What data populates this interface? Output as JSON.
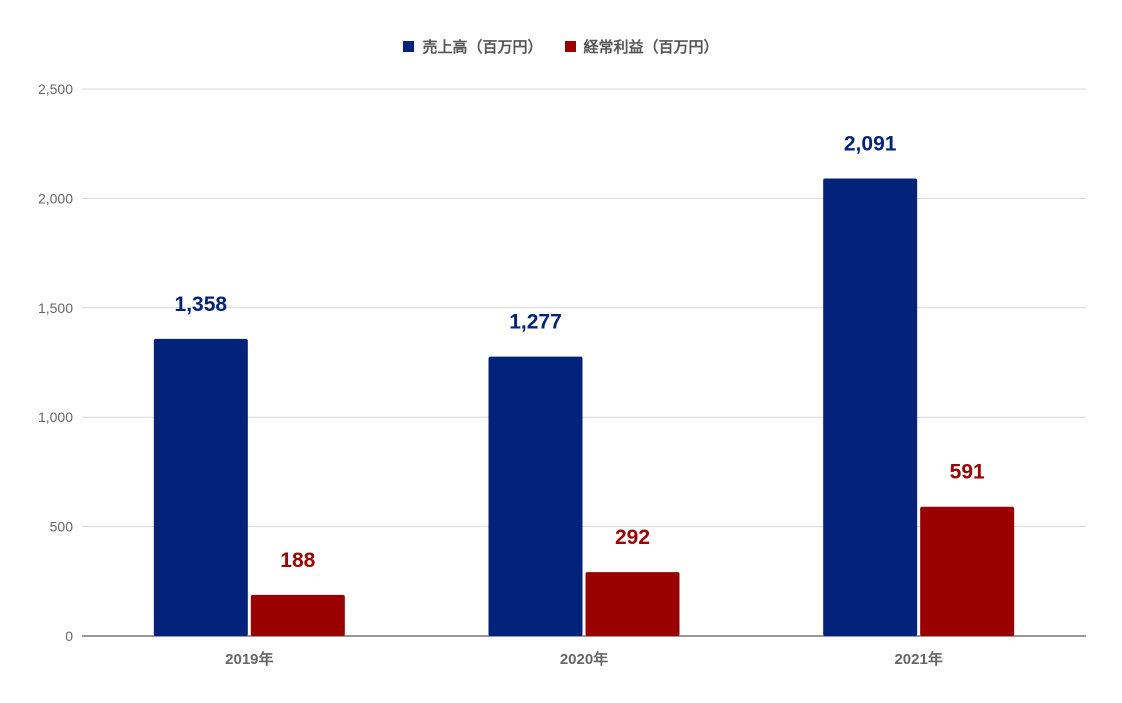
{
  "colors": {
    "series": [
      "#03237a",
      "#9a0000"
    ],
    "grid": "#d9d9d9",
    "axis": "#333333",
    "tick_text": "#666666"
  },
  "chart_data": {
    "type": "bar",
    "categories": [
      "2019年",
      "2020年",
      "2021年"
    ],
    "series": [
      {
        "name": "売上高（百万円）",
        "values": [
          1358,
          1277,
          2091
        ],
        "labels": [
          "1,358",
          "1,277",
          "2,091"
        ]
      },
      {
        "name": "経常利益（百万円）",
        "values": [
          188,
          292,
          591
        ],
        "labels": [
          "188",
          "292",
          "591"
        ]
      }
    ],
    "ylim": [
      0,
      2500
    ],
    "yticks": [
      0,
      500,
      1000,
      1500,
      2000,
      2500
    ],
    "ytick_labels": [
      "0",
      "500",
      "1,000",
      "1,500",
      "2,000",
      "2,500"
    ],
    "grid": true,
    "legend": "top-center"
  }
}
